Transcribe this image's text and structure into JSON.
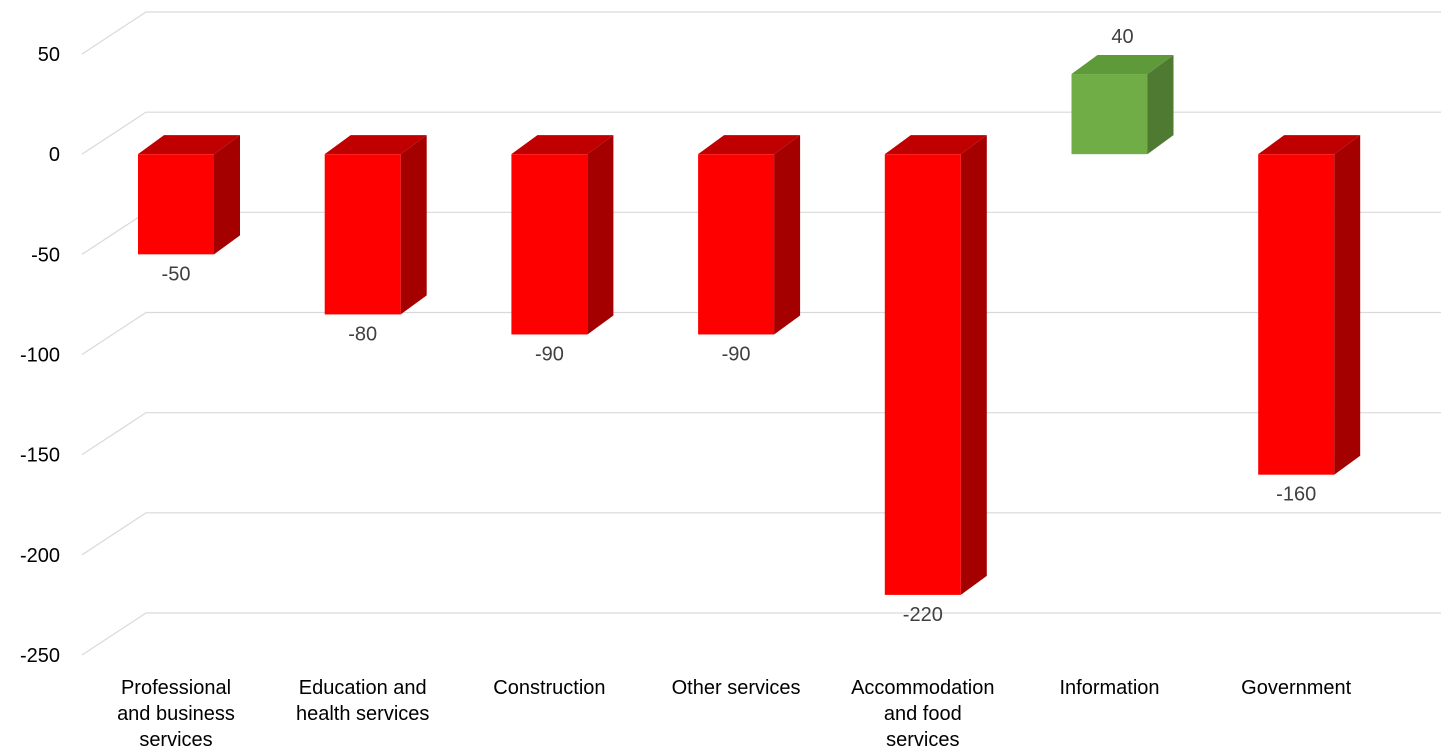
{
  "chart_data": {
    "type": "bar",
    "style": "3d-column",
    "categories": [
      [
        "Professional",
        "and business",
        "services"
      ],
      [
        "Education and",
        "health services"
      ],
      [
        "Construction"
      ],
      [
        "Other services"
      ],
      [
        "Accommodation",
        "and food",
        "services"
      ],
      [
        "Information"
      ],
      [
        "Government"
      ]
    ],
    "values": [
      -50,
      -80,
      -90,
      -90,
      -220,
      40,
      -160
    ],
    "data_labels": [
      "-50",
      "-80",
      "-90",
      "-90",
      "-220",
      "40",
      "-160"
    ],
    "y_ticks": [
      "50",
      "0",
      "-50",
      "-100",
      "-150",
      "-200",
      "-250"
    ],
    "ylim": [
      -250,
      50
    ],
    "grid": true,
    "legend": "none",
    "colors": {
      "negative_front": "#ff0000",
      "negative_side": "#a50000",
      "negative_top": "#c00000",
      "positive_front": "#70ad47",
      "positive_side": "#4e7a32",
      "positive_top": "#5e9a3a",
      "grid": "#d9d9d9",
      "data_label": "#404040"
    }
  }
}
